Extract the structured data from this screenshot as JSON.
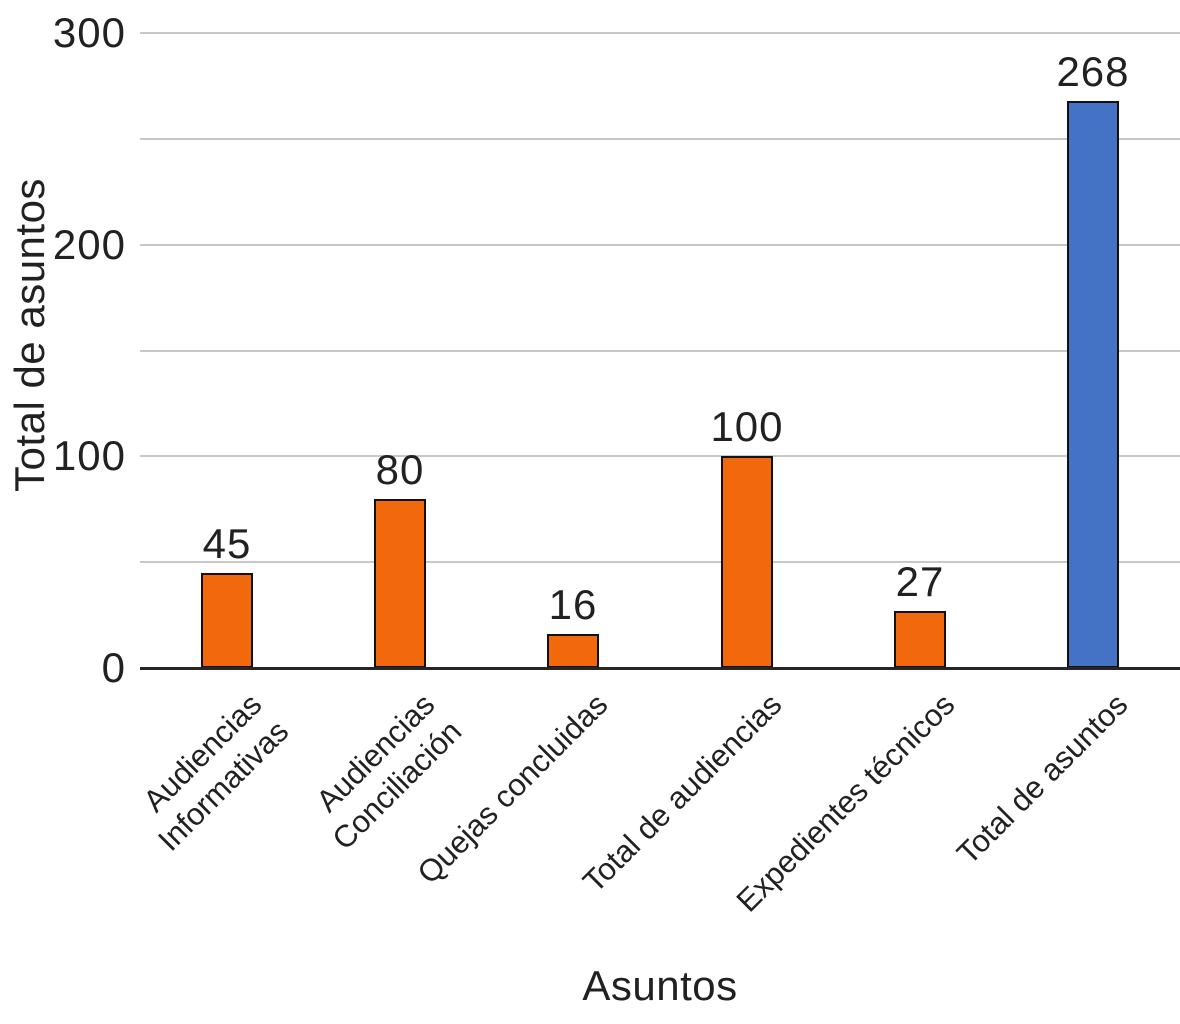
{
  "colors": {
    "bar_orange": "#F2690D",
    "bar_blue": "#4472C4",
    "bar_border": "#111111",
    "gridline": "#C8C8C8",
    "axis_line": "#262626",
    "text": "#212121",
    "background": "#FFFFFF"
  },
  "chart_data": {
    "type": "bar",
    "title": "",
    "xlabel": "Asuntos",
    "ylabel": "Total de asuntos",
    "categories": [
      "Audiencias\nInformativas",
      "Audiencias\nConciliación",
      "Quejas concluidas",
      "Total de audiencias",
      "Expedientes técnicos",
      "Total de asuntos"
    ],
    "values": [
      45,
      80,
      16,
      100,
      27,
      268
    ],
    "bar_colors": [
      "#F2690D",
      "#F2690D",
      "#F2690D",
      "#F2690D",
      "#F2690D",
      "#4472C4"
    ],
    "show_data_labels": true,
    "data_labels": [
      "45",
      "80",
      "16",
      "100",
      "27",
      "268"
    ],
    "ylim": [
      0,
      300
    ],
    "yticks": [
      0,
      100,
      200,
      300
    ],
    "ytick_labels": [
      "0",
      "100",
      "200",
      "300"
    ],
    "gridline_step": 50,
    "grid": true,
    "legend": false
  }
}
